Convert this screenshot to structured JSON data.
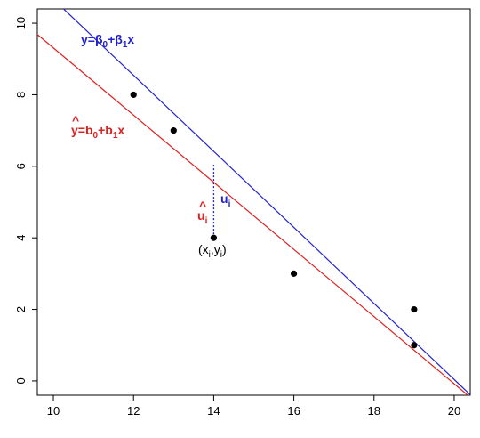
{
  "chart_data": {
    "type": "scatter",
    "title": "",
    "xlabel": "",
    "ylabel": "",
    "xlim": [
      9.6,
      20.4
    ],
    "ylim": [
      -0.4,
      10.4
    ],
    "xticks": [
      10,
      12,
      14,
      16,
      18,
      20
    ],
    "yticks": [
      0,
      2,
      4,
      6,
      8,
      10
    ],
    "x_tick_labels": [
      "10",
      "12",
      "14",
      "16",
      "18",
      "20"
    ],
    "y_tick_labels": [
      "0",
      "2",
      "4",
      "6",
      "8",
      "10"
    ],
    "grid": false,
    "points": [
      {
        "x": 12,
        "y": 8
      },
      {
        "x": 13,
        "y": 7
      },
      {
        "x": 14,
        "y": 4
      },
      {
        "x": 16,
        "y": 3
      },
      {
        "x": 19,
        "y": 2
      },
      {
        "x": 19,
        "y": 1
      }
    ],
    "lines": [
      {
        "label": "y=β0+β1x",
        "color": "#2222cc",
        "intercept": 21.3,
        "slope": -1.063
      },
      {
        "label": "ŷ=b0+b1x",
        "color": "#dd2222",
        "intercept": 18.7,
        "slope": -0.939
      }
    ],
    "residual_segment": {
      "x": 14,
      "y_from": 4,
      "y_to": 6.08,
      "color": "#2222cc"
    },
    "annotations": {
      "blue_line_label": {
        "base": "y=β",
        "sub0": "0",
        "mid": "+β",
        "sub1": "1",
        "tail": "x",
        "color": "#2222cc"
      },
      "red_line_label": {
        "hat": "^",
        "base": "y=b",
        "sub0": "0",
        "mid": "+b",
        "sub1": "1",
        "tail": "x",
        "color": "#dd2222"
      },
      "u_label": {
        "base": "u",
        "sub": "i",
        "color": "#2222cc"
      },
      "uhat_label": {
        "hat": "^",
        "base": "u",
        "sub": "i",
        "color": "#dd2222"
      },
      "point_label": {
        "open": "(x",
        "sub_x": "i",
        "comma": ",y",
        "sub_y": "i",
        "close": ")"
      }
    }
  }
}
